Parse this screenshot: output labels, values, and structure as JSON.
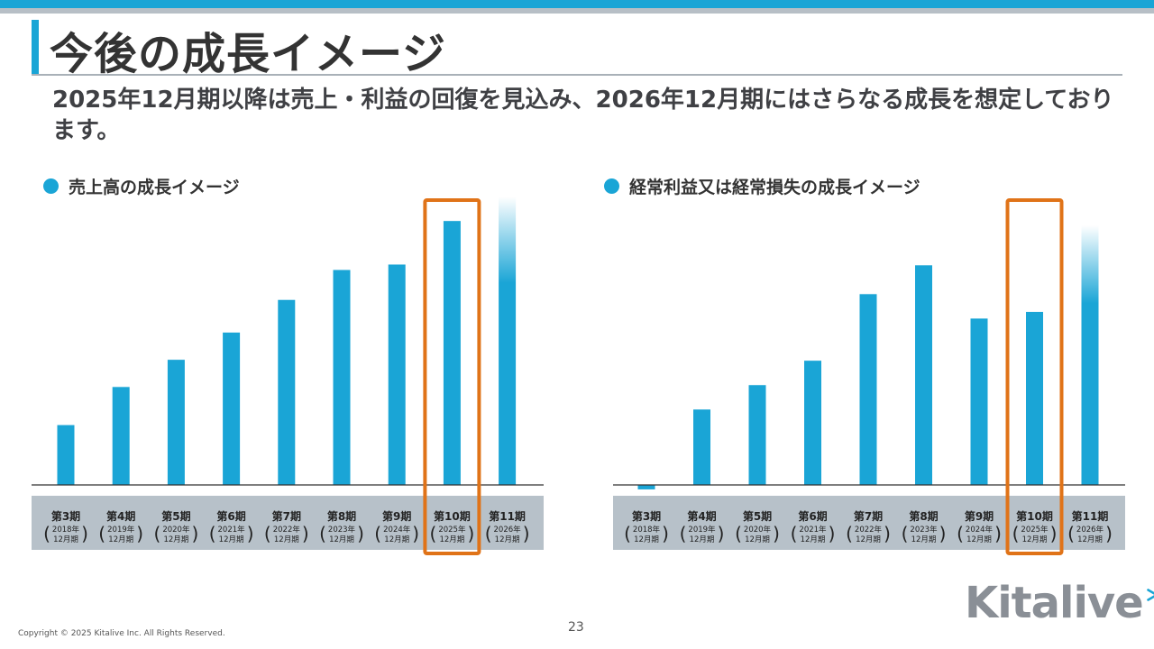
{
  "title": "今後の成長イメージ",
  "subtitle": "2025年12月期以降は売上・利益の回復を見込み、2026年12月期にはさらなる成長を想定しております。",
  "page_number": "23",
  "copyright": "Copyright © 2025 Kitalive Inc. All Rights Reserved.",
  "logo_text": "Kitalive",
  "colors": {
    "accent": "#1aa5d6",
    "highlight": "#e07318",
    "axis_band": "#b7c1c9"
  },
  "chart_data": [
    {
      "type": "bar",
      "title": "売上高の成長イメージ",
      "categories": [
        {
          "period": "第3期",
          "year": "2018年",
          "month": "12月期"
        },
        {
          "period": "第4期",
          "year": "2019年",
          "month": "12月期"
        },
        {
          "period": "第5期",
          "year": "2020年",
          "month": "12月期"
        },
        {
          "period": "第6期",
          "year": "2021年",
          "month": "12月期"
        },
        {
          "period": "第7期",
          "year": "2022年",
          "month": "12月期"
        },
        {
          "period": "第8期",
          "year": "2023年",
          "month": "12月期"
        },
        {
          "period": "第9期",
          "year": "2024年",
          "month": "12月期"
        },
        {
          "period": "第10期",
          "year": "2025年",
          "month": "12月期"
        },
        {
          "period": "第11期",
          "year": "2026年",
          "month": "12月期"
        }
      ],
      "values": [
        22,
        36,
        46,
        56,
        68,
        79,
        81,
        97,
        106
      ],
      "ylim": [
        0,
        106
      ],
      "highlight_index": 7,
      "projected_index": 8
    },
    {
      "type": "bar",
      "title": "経常利益又は経常損失の成長イメージ",
      "categories": [
        {
          "period": "第3期",
          "year": "2018年",
          "month": "12月期"
        },
        {
          "period": "第4期",
          "year": "2019年",
          "month": "12月期"
        },
        {
          "period": "第5期",
          "year": "2020年",
          "month": "12月期"
        },
        {
          "period": "第6期",
          "year": "2021年",
          "month": "12月期"
        },
        {
          "period": "第7期",
          "year": "2022年",
          "month": "12月期"
        },
        {
          "period": "第8期",
          "year": "2023年",
          "month": "12月期"
        },
        {
          "period": "第9期",
          "year": "2024年",
          "month": "12月期"
        },
        {
          "period": "第10期",
          "year": "2025年",
          "month": "12月期"
        },
        {
          "period": "第11期",
          "year": "2026年",
          "month": "12月期"
        }
      ],
      "values": [
        -2,
        34,
        45,
        56,
        86,
        99,
        75,
        78,
        117
      ],
      "ylim": [
        -2,
        117
      ],
      "highlight_index": 7,
      "projected_index": 8
    }
  ]
}
